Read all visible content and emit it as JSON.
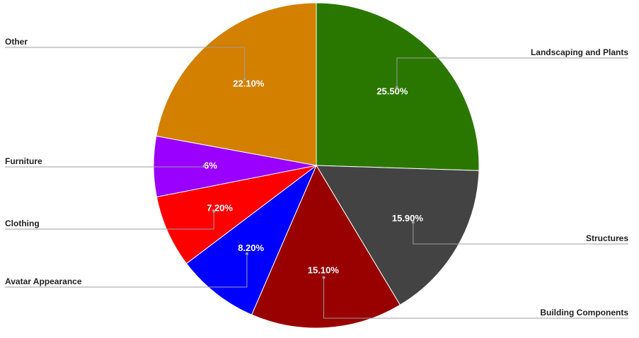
{
  "chart_data": {
    "type": "pie",
    "title": "",
    "start_angle_deg": 0,
    "direction": "clockwise",
    "slices": [
      {
        "name": "Landscaping and Plants",
        "value": 25.5,
        "label": "25.50%",
        "color": "#2a7700"
      },
      {
        "name": "Structures",
        "value": 15.9,
        "label": "15.90%",
        "color": "#434343"
      },
      {
        "name": "Building Components",
        "value": 15.1,
        "label": "15.10%",
        "color": "#990000"
      },
      {
        "name": "Avatar Appearance",
        "value": 8.2,
        "label": "8.20%",
        "color": "#0000ff"
      },
      {
        "name": "Clothing",
        "value": 7.2,
        "label": "7.20%",
        "color": "#ff0000"
      },
      {
        "name": "Furniture",
        "value": 6,
        "label": "6%",
        "color": "#9900ff"
      },
      {
        "name": "Other",
        "value": 22.1,
        "label": "22.10%",
        "color": "#d37f00"
      }
    ],
    "label_sides": [
      "right",
      "right",
      "right",
      "left",
      "left",
      "left",
      "left"
    ]
  }
}
